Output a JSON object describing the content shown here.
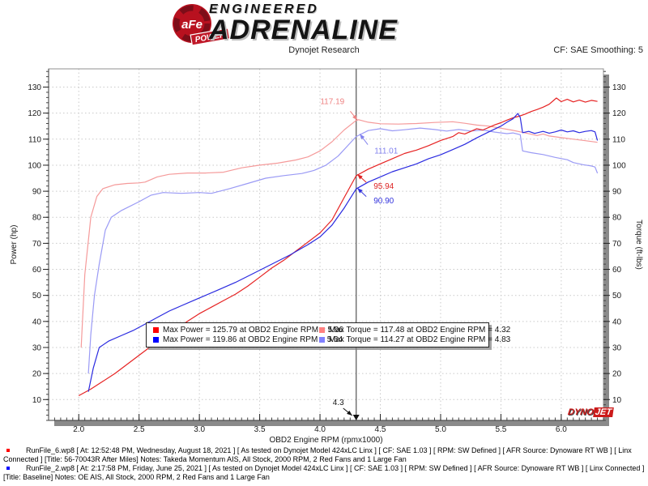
{
  "header": {
    "brand": {
      "badge_text": "aFe",
      "badge_sub": "POWER",
      "reg_mark": "®",
      "line1": "ENGINEERED",
      "line2": "ADRENALINE"
    },
    "subtitle": "Dynojet Research",
    "correction": "CF: SAE Smoothing: 5"
  },
  "chart_data": {
    "type": "line",
    "title": "",
    "xlabel": "OBD2 Engine RPM (rpmx1000)",
    "ylabel_left": "Power (hp)",
    "ylabel_right": "Torque (ft-lbs)",
    "xlim": [
      1.75,
      6.35
    ],
    "ylim": [
      2,
      137
    ],
    "x_ticks": [
      2.0,
      2.5,
      3.0,
      3.5,
      4.0,
      4.5,
      5.0,
      5.5,
      6.0
    ],
    "y_ticks": [
      10,
      20,
      30,
      40,
      50,
      60,
      70,
      80,
      90,
      100,
      110,
      120,
      130
    ],
    "x_minor_step": 0.05,
    "y_minor_step": 2,
    "grid": "dotted",
    "cursor": {
      "x": 4.3,
      "label": "4.3"
    },
    "series": [
      {
        "name": "torque-after",
        "color": "#f59a9a",
        "points": [
          [
            2.02,
            30
          ],
          [
            2.05,
            58
          ],
          [
            2.1,
            80
          ],
          [
            2.15,
            88
          ],
          [
            2.2,
            91
          ],
          [
            2.3,
            92.5
          ],
          [
            2.4,
            93
          ],
          [
            2.5,
            93.2
          ],
          [
            2.55,
            93.5
          ],
          [
            2.65,
            95.5
          ],
          [
            2.75,
            96.5
          ],
          [
            2.9,
            97
          ],
          [
            3.05,
            97
          ],
          [
            3.2,
            97.3
          ],
          [
            3.35,
            99
          ],
          [
            3.5,
            100
          ],
          [
            3.65,
            100.8
          ],
          [
            3.8,
            102
          ],
          [
            3.9,
            103.2
          ],
          [
            4.0,
            105.5
          ],
          [
            4.1,
            109
          ],
          [
            4.2,
            113.5
          ],
          [
            4.3,
            117.19
          ],
          [
            4.32,
            117.48
          ],
          [
            4.4,
            116.5
          ],
          [
            4.5,
            115.9
          ],
          [
            4.65,
            115.8
          ],
          [
            4.8,
            116
          ],
          [
            4.95,
            116.4
          ],
          [
            5.1,
            116.7
          ],
          [
            5.2,
            116.1
          ],
          [
            5.3,
            115.4
          ],
          [
            5.4,
            115
          ],
          [
            5.5,
            114.2
          ],
          [
            5.6,
            113.4
          ],
          [
            5.7,
            112.4
          ],
          [
            5.8,
            111.4
          ],
          [
            5.85,
            112
          ],
          [
            5.9,
            111.2
          ],
          [
            6.0,
            110.6
          ],
          [
            6.1,
            110
          ],
          [
            6.2,
            109.4
          ],
          [
            6.3,
            108.8
          ]
        ]
      },
      {
        "name": "torque-baseline",
        "color": "#9a9af5",
        "points": [
          [
            2.08,
            20
          ],
          [
            2.1,
            35
          ],
          [
            2.13,
            50
          ],
          [
            2.17,
            62
          ],
          [
            2.22,
            75
          ],
          [
            2.27,
            80
          ],
          [
            2.35,
            82.5
          ],
          [
            2.5,
            86
          ],
          [
            2.6,
            88.5
          ],
          [
            2.7,
            89.5
          ],
          [
            2.85,
            89.2
          ],
          [
            3.0,
            89.5
          ],
          [
            3.1,
            89.2
          ],
          [
            3.25,
            91
          ],
          [
            3.4,
            93
          ],
          [
            3.55,
            95
          ],
          [
            3.7,
            96
          ],
          [
            3.85,
            96.8
          ],
          [
            3.95,
            98
          ],
          [
            4.05,
            100
          ],
          [
            4.15,
            103.5
          ],
          [
            4.3,
            111.01
          ],
          [
            4.4,
            113.3
          ],
          [
            4.5,
            114
          ],
          [
            4.6,
            113.2
          ],
          [
            4.7,
            113.6
          ],
          [
            4.83,
            114.27
          ],
          [
            4.95,
            113.7
          ],
          [
            5.05,
            113.1
          ],
          [
            5.15,
            113.7
          ],
          [
            5.25,
            113.1
          ],
          [
            5.35,
            113.5
          ],
          [
            5.45,
            112.7
          ],
          [
            5.55,
            112.1
          ],
          [
            5.6,
            112.4
          ],
          [
            5.66,
            111.7
          ],
          [
            5.68,
            105.5
          ],
          [
            5.75,
            104.8
          ],
          [
            5.85,
            104.1
          ],
          [
            5.95,
            103
          ],
          [
            6.05,
            102.1
          ],
          [
            6.1,
            101
          ],
          [
            6.18,
            100.2
          ],
          [
            6.25,
            99.7
          ],
          [
            6.28,
            99.3
          ],
          [
            6.3,
            96.9
          ]
        ]
      },
      {
        "name": "power-after",
        "color": "#e62222",
        "points": [
          [
            2.0,
            11.5
          ],
          [
            2.1,
            14
          ],
          [
            2.2,
            17
          ],
          [
            2.3,
            20
          ],
          [
            2.4,
            23.5
          ],
          [
            2.5,
            27
          ],
          [
            2.6,
            30.5
          ],
          [
            2.7,
            34
          ],
          [
            2.8,
            37
          ],
          [
            2.9,
            40
          ],
          [
            3.0,
            43
          ],
          [
            3.1,
            45.5
          ],
          [
            3.2,
            48
          ],
          [
            3.3,
            50.5
          ],
          [
            3.4,
            53.5
          ],
          [
            3.5,
            57
          ],
          [
            3.6,
            60.5
          ],
          [
            3.7,
            63.5
          ],
          [
            3.8,
            67
          ],
          [
            3.9,
            70.5
          ],
          [
            4.0,
            74
          ],
          [
            4.1,
            79
          ],
          [
            4.2,
            87.5
          ],
          [
            4.3,
            95.94
          ],
          [
            4.4,
            98.5
          ],
          [
            4.5,
            100.5
          ],
          [
            4.6,
            102.5
          ],
          [
            4.7,
            104.5
          ],
          [
            4.8,
            105.8
          ],
          [
            4.9,
            107.5
          ],
          [
            5.0,
            109.5
          ],
          [
            5.1,
            111
          ],
          [
            5.15,
            112.5
          ],
          [
            5.2,
            112
          ],
          [
            5.3,
            114
          ],
          [
            5.35,
            113.5
          ],
          [
            5.45,
            115.5
          ],
          [
            5.5,
            116.3
          ],
          [
            5.55,
            117.3
          ],
          [
            5.6,
            118.2
          ],
          [
            5.65,
            118.8
          ],
          [
            5.7,
            119.6
          ],
          [
            5.75,
            120.6
          ],
          [
            5.8,
            121.4
          ],
          [
            5.85,
            122.3
          ],
          [
            5.9,
            123.4
          ],
          [
            5.96,
            125.79
          ],
          [
            6.0,
            124.4
          ],
          [
            6.05,
            125.3
          ],
          [
            6.1,
            124.3
          ],
          [
            6.15,
            125
          ],
          [
            6.2,
            124.2
          ],
          [
            6.25,
            124.9
          ],
          [
            6.3,
            124.5
          ]
        ]
      },
      {
        "name": "power-baseline",
        "color": "#2a2ae0",
        "points": [
          [
            2.08,
            13
          ],
          [
            2.12,
            22
          ],
          [
            2.17,
            30
          ],
          [
            2.25,
            32.5
          ],
          [
            2.35,
            34.5
          ],
          [
            2.45,
            36.5
          ],
          [
            2.55,
            39
          ],
          [
            2.65,
            41.5
          ],
          [
            2.75,
            44
          ],
          [
            2.85,
            46
          ],
          [
            2.95,
            48
          ],
          [
            3.05,
            50
          ],
          [
            3.15,
            52
          ],
          [
            3.3,
            55
          ],
          [
            3.45,
            58.5
          ],
          [
            3.6,
            62
          ],
          [
            3.75,
            65.5
          ],
          [
            3.9,
            69.5
          ],
          [
            4.0,
            72.5
          ],
          [
            4.1,
            77
          ],
          [
            4.2,
            83.5
          ],
          [
            4.3,
            90.9
          ],
          [
            4.4,
            93.5
          ],
          [
            4.5,
            95.5
          ],
          [
            4.6,
            97.5
          ],
          [
            4.7,
            99
          ],
          [
            4.8,
            100.5
          ],
          [
            4.9,
            102.5
          ],
          [
            5.0,
            104
          ],
          [
            5.1,
            106
          ],
          [
            5.2,
            108
          ],
          [
            5.3,
            110.5
          ],
          [
            5.4,
            112.8
          ],
          [
            5.5,
            115
          ],
          [
            5.55,
            116.5
          ],
          [
            5.6,
            117.8
          ],
          [
            5.64,
            119.86
          ],
          [
            5.66,
            118.3
          ],
          [
            5.68,
            112.5
          ],
          [
            5.73,
            113
          ],
          [
            5.78,
            112.2
          ],
          [
            5.85,
            113
          ],
          [
            5.9,
            112.3
          ],
          [
            5.95,
            112.8
          ],
          [
            6.0,
            113.5
          ],
          [
            6.05,
            112.8
          ],
          [
            6.1,
            113.2
          ],
          [
            6.15,
            112.5
          ],
          [
            6.2,
            113
          ],
          [
            6.25,
            113.3
          ],
          [
            6.28,
            112.8
          ],
          [
            6.3,
            109.5
          ]
        ]
      }
    ],
    "annotations": [
      {
        "label": "117.19",
        "color": "#ee8282",
        "x": 4.31,
        "y": 117.3,
        "ox": -16,
        "oy": -20,
        "anchor": "end"
      },
      {
        "label": "111.01",
        "color": "#8282ee",
        "x": 4.33,
        "y": 112.0,
        "ox": 18,
        "oy": 24,
        "anchor": "start"
      },
      {
        "label": "95.94",
        "color": "#dd2222",
        "x": 4.31,
        "y": 96.5,
        "ox": 20,
        "oy": 18,
        "anchor": "start"
      },
      {
        "label": "90.90",
        "color": "#3333dd",
        "x": 4.31,
        "y": 91.2,
        "ox": 20,
        "oy": 19,
        "anchor": "start"
      }
    ],
    "legend": {
      "items": [
        {
          "label": "Max Power  =  125.79 at OBD2 Engine RPM  =  5.96",
          "color": "#ff0000"
        },
        {
          "label": "Max Torque  =  117.48 at OBD2 Engine RPM  =  4.32",
          "color": "#ff8080"
        },
        {
          "label": "Max Power  =  119.86 at OBD2 Engine RPM  =  5.64",
          "color": "#0000ff"
        },
        {
          "label": "Max Torque  =  114.27 at OBD2 Engine RPM  =  4.83",
          "color": "#8080ff"
        }
      ]
    },
    "watermark": {
      "part1": "DYNO",
      "part2": "JET"
    }
  },
  "footer": {
    "runs": [
      {
        "color": "#ff0000",
        "text": "RunFile_6.wp8 [ At: 12:52:48 PM, Wednesday, August 18, 2021 ] [ As tested on Dynojet Model 424xLC Linx ] [ CF: SAE 1.03 ] [ RPM: SW Defined ] [ AFR Source: Dynoware RT WB ] [ Linx Connected ] [Title:  56-70043R After Miles]  Notes: Takeda Momentum AIS, All Stock, 2000 RPM, 2 Red Fans and 1 Large Fan"
      },
      {
        "color": "#0000ff",
        "text": "RunFile_2.wp8 [ At: 2:17:58 PM, Friday, June 25, 2021 ] [ As tested on Dynojet Model 424xLC Linx ] [ CF: SAE 1.03 ] [ RPM: SW Defined ] [ AFR Source: Dynoware RT WB ] [ Linx Connected ] [Title: Baseline]  Notes: OE AIS, All Stock, 2000 RPM, 2 Red Fans and 1 Large Fan"
      }
    ]
  }
}
